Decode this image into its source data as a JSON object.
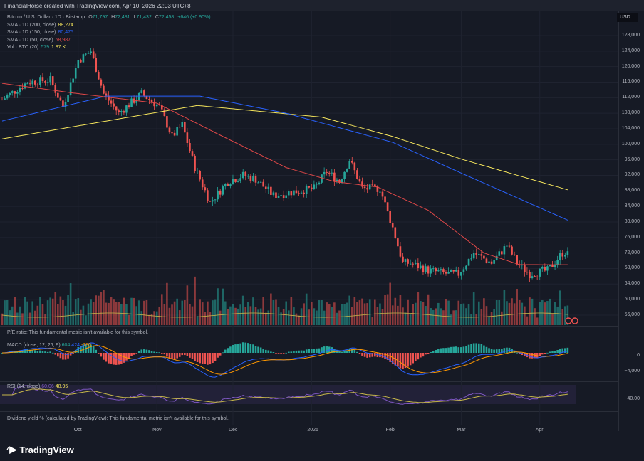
{
  "header": {
    "credit": "FinancialHorse created with TradingView.com, Apr 10, 2026 22:03 UTC+8"
  },
  "legend": {
    "symbol": "Bitcoin / U.S. Dollar · 1D · Bitstamp",
    "o_label": "O",
    "o": "71,797",
    "h_label": "H",
    "h": "72,481",
    "l_label": "L",
    "l": "71,432",
    "c_label": "C",
    "c": "72,458",
    "change": "+646 (+0.90%)",
    "sma200": "SMA · 1D (200, close)",
    "sma200_val": "88,274",
    "sma150": "SMA · 1D (150, close)",
    "sma150_val": "80,475",
    "sma50": "SMA · 1D (50, close)",
    "sma50_val": "68,987",
    "vol": "Vol · BTC (20)",
    "vol_val": "579",
    "vol_ma": "1.87 K"
  },
  "currency": "USD",
  "pe_text": "P/E ratio: This fundamental metric isn't available for this symbol.",
  "macd": {
    "label": "MACD (close, 12, 26, 9)",
    "v1": "604",
    "v2": "424",
    "v3": "-180",
    "ticks": [
      "0",
      "−4,000"
    ]
  },
  "rsi": {
    "label": "RSI (14, close)",
    "v1": "60.06",
    "v2": "48.95",
    "tick": "40.00"
  },
  "dividend_text": "Dividend yield % (calculated by TradingView): This fundamental metric isn't available for this symbol.",
  "brand": "TradingView",
  "colors": {
    "up": "#26a69a",
    "down": "#ef5350",
    "sma200": "#f5e55c",
    "sma150": "#2962ff",
    "sma50": "#e04848",
    "rsi": "#7e57c2"
  },
  "chart_data": {
    "type": "candlestick",
    "x_ticks": [
      {
        "label": "Oct",
        "day": 30
      },
      {
        "label": "Nov",
        "day": 61
      },
      {
        "label": "Dec",
        "day": 91
      },
      {
        "label": "2026",
        "day": 122
      },
      {
        "label": "Feb",
        "day": 153
      },
      {
        "label": "Mar",
        "day": 181
      },
      {
        "label": "Apr",
        "day": 212
      }
    ],
    "y_ticks": [
      128000,
      124000,
      120000,
      116000,
      112000,
      108000,
      104000,
      100000,
      96000,
      92000,
      88000,
      84000,
      80000,
      76000,
      72000,
      68000,
      64000,
      60000,
      56000
    ],
    "ylim": [
      54000,
      131000
    ],
    "close_anchors": [
      [
        0,
        111500
      ],
      [
        10,
        116000
      ],
      [
        19,
        116600
      ],
      [
        24,
        109700
      ],
      [
        30,
        121600
      ],
      [
        35,
        124000
      ],
      [
        40,
        113000
      ],
      [
        46,
        108000
      ],
      [
        55,
        113000
      ],
      [
        62,
        109700
      ],
      [
        67,
        102000
      ],
      [
        71,
        105000
      ],
      [
        76,
        94000
      ],
      [
        82,
        85000
      ],
      [
        89,
        90400
      ],
      [
        95,
        92000
      ],
      [
        100,
        91000
      ],
      [
        107,
        86800
      ],
      [
        114,
        87700
      ],
      [
        123,
        88600
      ],
      [
        128,
        93000
      ],
      [
        133,
        90400
      ],
      [
        137,
        96000
      ],
      [
        142,
        88600
      ],
      [
        149,
        88600
      ],
      [
        154,
        78500
      ],
      [
        158,
        69400
      ],
      [
        161,
        69400
      ],
      [
        168,
        67500
      ],
      [
        176,
        66600
      ],
      [
        180,
        66600
      ],
      [
        186,
        72000
      ],
      [
        193,
        69400
      ],
      [
        199,
        74000
      ],
      [
        203,
        69400
      ],
      [
        208,
        66600
      ],
      [
        215,
        67500
      ],
      [
        221,
        72000
      ],
      [
        223,
        72458
      ]
    ],
    "sma200_anchors": [
      [
        0,
        101400
      ],
      [
        77,
        110000
      ],
      [
        126,
        107000
      ],
      [
        154,
        102000
      ],
      [
        182,
        96000
      ],
      [
        223,
        88274
      ]
    ],
    "sma150_anchors": [
      [
        0,
        106000
      ],
      [
        41,
        112400
      ],
      [
        78,
        112400
      ],
      [
        112,
        108000
      ],
      [
        154,
        100500
      ],
      [
        182,
        92300
      ],
      [
        223,
        80475
      ]
    ],
    "sma50_anchors": [
      [
        0,
        115700
      ],
      [
        27,
        113300
      ],
      [
        61,
        110600
      ],
      [
        84,
        103000
      ],
      [
        112,
        94000
      ],
      [
        131,
        90400
      ],
      [
        148,
        89000
      ],
      [
        168,
        83000
      ],
      [
        190,
        72000
      ],
      [
        204,
        69000
      ],
      [
        223,
        68987
      ]
    ]
  }
}
